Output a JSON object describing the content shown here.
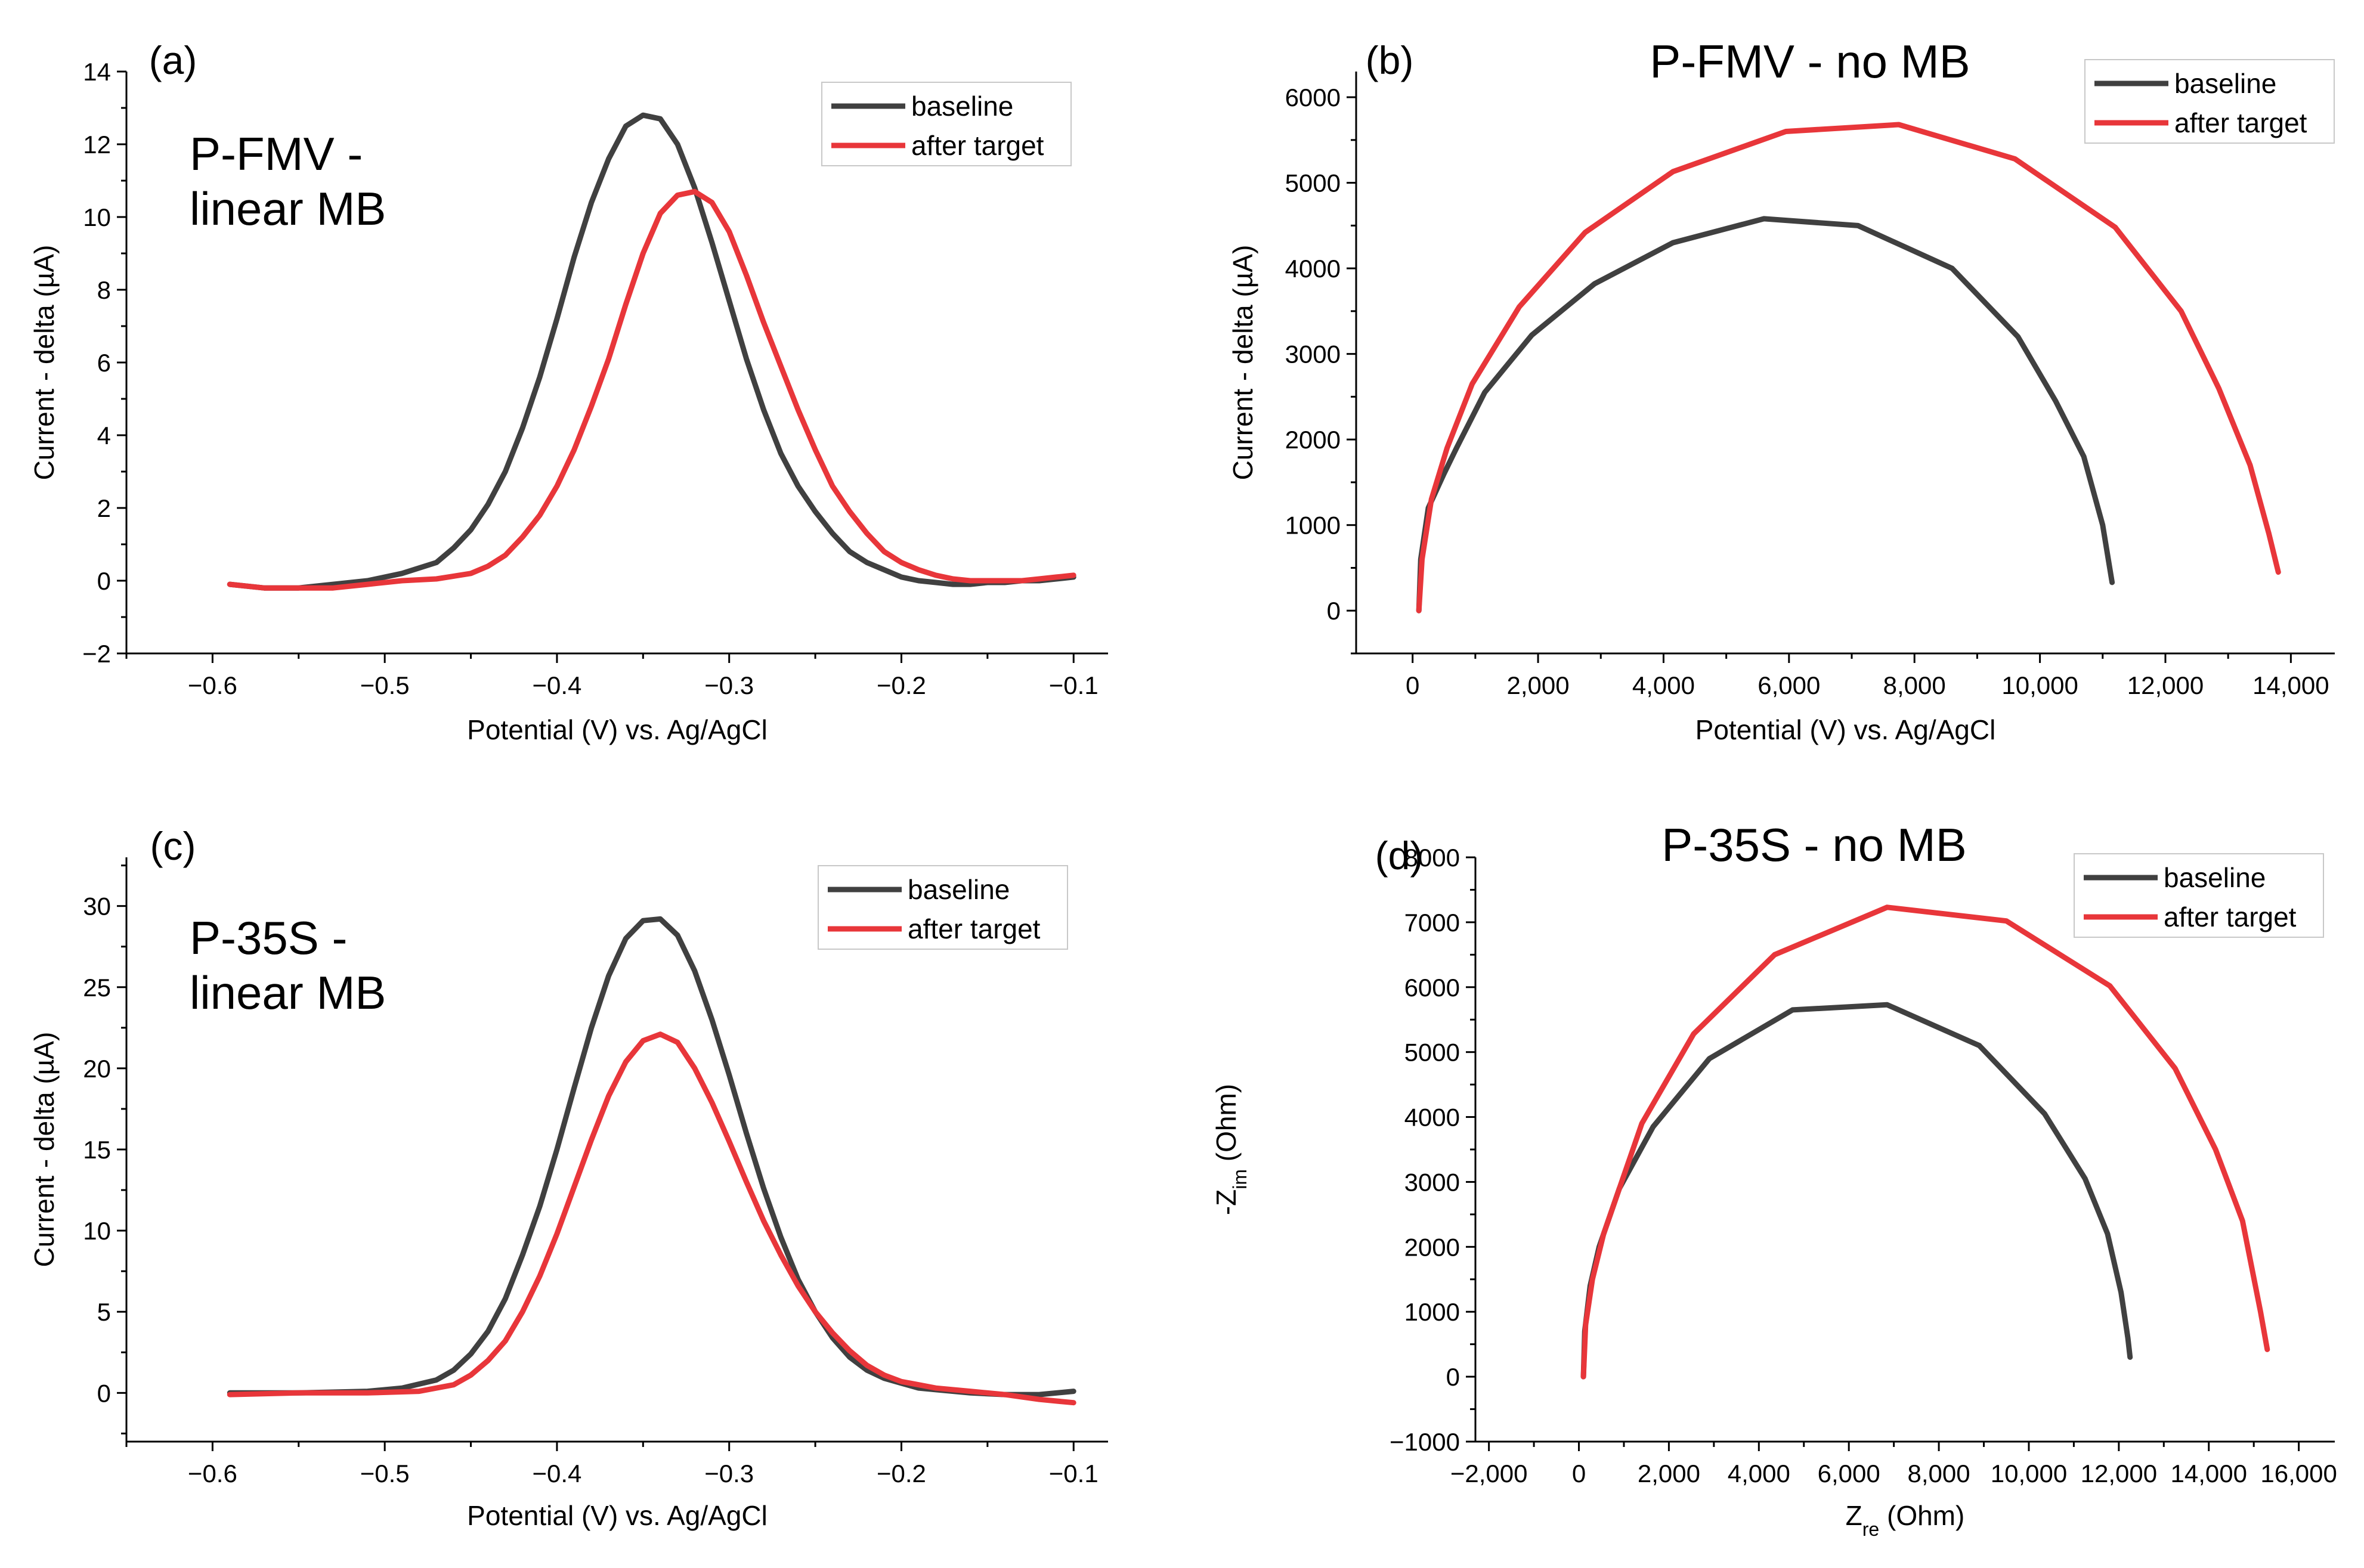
{
  "colors": {
    "baseline": "#404040",
    "after_target": "#e8363a"
  },
  "chart_data": [
    {
      "type": "line",
      "panel_label": "(a)",
      "title": "",
      "annotation_lines": [
        "P-FMV -",
        "linear MB"
      ],
      "xlabel": "Potential (V) vs. Ag/AgCl",
      "ylabel": "Current - delta (µA)",
      "xlim": [
        -0.65,
        -0.08
      ],
      "ylim": [
        -2,
        14
      ],
      "xticks": [
        -0.6,
        -0.5,
        -0.4,
        -0.3,
        -0.2,
        -0.1
      ],
      "xtick_labels": [
        "−0.6",
        "−0.5",
        "−0.4",
        "−0.3",
        "−0.2",
        "−0.1"
      ],
      "yticks": [
        -2,
        0,
        2,
        4,
        6,
        8,
        10,
        12,
        14
      ],
      "ytick_labels": [
        "−2",
        "0",
        "2",
        "4",
        "6",
        "8",
        "10",
        "12",
        "14"
      ],
      "legend_labels": [
        "baseline",
        "after target"
      ],
      "series": [
        {
          "name": "baseline",
          "x": [
            -0.59,
            -0.57,
            -0.55,
            -0.53,
            -0.51,
            -0.49,
            -0.47,
            -0.46,
            -0.45,
            -0.44,
            -0.43,
            -0.42,
            -0.41,
            -0.4,
            -0.39,
            -0.38,
            -0.37,
            -0.36,
            -0.35,
            -0.34,
            -0.33,
            -0.32,
            -0.31,
            -0.3,
            -0.29,
            -0.28,
            -0.27,
            -0.26,
            -0.25,
            -0.24,
            -0.23,
            -0.22,
            -0.21,
            -0.2,
            -0.19,
            -0.18,
            -0.17,
            -0.16,
            -0.15,
            -0.14,
            -0.13,
            -0.12,
            -0.11,
            -0.1
          ],
          "y": [
            -0.1,
            -0.2,
            -0.2,
            -0.1,
            0.0,
            0.2,
            0.5,
            0.9,
            1.4,
            2.1,
            3.0,
            4.2,
            5.6,
            7.2,
            8.9,
            10.4,
            11.6,
            12.5,
            12.8,
            12.7,
            12.0,
            10.8,
            9.3,
            7.7,
            6.1,
            4.7,
            3.5,
            2.6,
            1.9,
            1.3,
            0.8,
            0.5,
            0.3,
            0.1,
            0.0,
            -0.05,
            -0.1,
            -0.1,
            -0.05,
            -0.05,
            0.0,
            0.0,
            0.05,
            0.1
          ]
        },
        {
          "name": "after target",
          "x": [
            -0.59,
            -0.57,
            -0.55,
            -0.53,
            -0.51,
            -0.49,
            -0.47,
            -0.45,
            -0.44,
            -0.43,
            -0.42,
            -0.41,
            -0.4,
            -0.39,
            -0.38,
            -0.37,
            -0.36,
            -0.35,
            -0.34,
            -0.33,
            -0.32,
            -0.31,
            -0.3,
            -0.29,
            -0.28,
            -0.27,
            -0.26,
            -0.25,
            -0.24,
            -0.23,
            -0.22,
            -0.21,
            -0.2,
            -0.19,
            -0.18,
            -0.17,
            -0.16,
            -0.15,
            -0.14,
            -0.13,
            -0.12,
            -0.11,
            -0.1
          ],
          "y": [
            -0.1,
            -0.2,
            -0.2,
            -0.2,
            -0.1,
            0.0,
            0.05,
            0.2,
            0.4,
            0.7,
            1.2,
            1.8,
            2.6,
            3.6,
            4.8,
            6.1,
            7.6,
            9.0,
            10.1,
            10.6,
            10.7,
            10.4,
            9.6,
            8.4,
            7.1,
            5.9,
            4.7,
            3.6,
            2.6,
            1.9,
            1.3,
            0.8,
            0.5,
            0.3,
            0.15,
            0.05,
            0.0,
            0.0,
            0.0,
            0.0,
            0.05,
            0.1,
            0.15
          ]
        }
      ]
    },
    {
      "type": "line",
      "panel_label": "(b)",
      "title": "P-FMV - no MB",
      "annotation_lines": [],
      "xlabel": "Potential (V) vs. Ag/AgCl",
      "ylabel": "Current - delta (µA)",
      "xlim": [
        -900,
        14700
      ],
      "ylim": [
        -500,
        6300
      ],
      "xticks": [
        0,
        2000,
        4000,
        6000,
        8000,
        10000,
        12000,
        14000
      ],
      "xtick_labels": [
        "0",
        "2,000",
        "4,000",
        "6,000",
        "8,000",
        "10,000",
        "12,000",
        "14,000"
      ],
      "yticks": [
        0,
        1000,
        2000,
        3000,
        4000,
        5000,
        6000
      ],
      "ytick_labels": [
        "0",
        "1000",
        "2000",
        "3000",
        "4000",
        "5000",
        "6000"
      ],
      "legend_labels": [
        "baseline",
        "after target"
      ],
      "series": [
        {
          "name": "baseline",
          "x": [
            100,
            130,
            250,
            500,
            700,
            1150,
            1900,
            2900,
            4150,
            5600,
            7100,
            8600,
            9650,
            10250,
            10700,
            11000,
            11150
          ],
          "y": [
            0,
            600,
            1200,
            1600,
            1900,
            2550,
            3220,
            3820,
            4300,
            4580,
            4500,
            4000,
            3200,
            2450,
            1800,
            1000,
            330
          ]
        },
        {
          "name": "after target",
          "x": [
            100,
            150,
            300,
            550,
            950,
            1700,
            2750,
            4150,
            5950,
            7750,
            9600,
            11200,
            12250,
            12850,
            13350,
            13650,
            13800
          ],
          "y": [
            0,
            600,
            1300,
            1900,
            2650,
            3550,
            4420,
            5130,
            5600,
            5680,
            5280,
            4480,
            3500,
            2600,
            1700,
            900,
            450
          ]
        }
      ]
    },
    {
      "type": "line",
      "panel_label": "(c)",
      "title": "",
      "annotation_lines": [
        "P-35S -",
        "linear MB"
      ],
      "xlabel": "Potential (V) vs. Ag/AgCl",
      "ylabel": "Current - delta (µA)",
      "xlim": [
        -0.65,
        -0.08
      ],
      "ylim": [
        -3,
        33
      ],
      "xticks": [
        -0.6,
        -0.5,
        -0.4,
        -0.3,
        -0.2,
        -0.1
      ],
      "xtick_labels": [
        "−0.6",
        "−0.5",
        "−0.4",
        "−0.3",
        "−0.2",
        "−0.1"
      ],
      "yticks": [
        0,
        5,
        10,
        15,
        20,
        25,
        30
      ],
      "ytick_labels": [
        "0",
        "5",
        "10",
        "15",
        "20",
        "25",
        "30"
      ],
      "legend_labels": [
        "baseline",
        "after target"
      ],
      "series": [
        {
          "name": "baseline",
          "x": [
            -0.59,
            -0.55,
            -0.51,
            -0.49,
            -0.47,
            -0.46,
            -0.45,
            -0.44,
            -0.43,
            -0.42,
            -0.41,
            -0.4,
            -0.39,
            -0.38,
            -0.37,
            -0.36,
            -0.35,
            -0.34,
            -0.33,
            -0.32,
            -0.31,
            -0.3,
            -0.29,
            -0.28,
            -0.27,
            -0.26,
            -0.25,
            -0.24,
            -0.23,
            -0.22,
            -0.21,
            -0.2,
            -0.19,
            -0.18,
            -0.16,
            -0.14,
            -0.12,
            -0.1
          ],
          "y": [
            0.0,
            0.0,
            0.1,
            0.3,
            0.8,
            1.4,
            2.4,
            3.8,
            5.8,
            8.5,
            11.5,
            15.0,
            18.8,
            22.5,
            25.7,
            28.0,
            29.1,
            29.2,
            28.2,
            26.0,
            23.0,
            19.6,
            16.0,
            12.6,
            9.6,
            7.0,
            5.0,
            3.4,
            2.2,
            1.4,
            0.9,
            0.6,
            0.3,
            0.2,
            0.0,
            -0.1,
            -0.1,
            0.1
          ]
        },
        {
          "name": "after target",
          "x": [
            -0.59,
            -0.55,
            -0.51,
            -0.48,
            -0.46,
            -0.45,
            -0.44,
            -0.43,
            -0.42,
            -0.41,
            -0.4,
            -0.39,
            -0.38,
            -0.37,
            -0.36,
            -0.35,
            -0.34,
            -0.33,
            -0.32,
            -0.31,
            -0.3,
            -0.29,
            -0.28,
            -0.27,
            -0.26,
            -0.25,
            -0.24,
            -0.23,
            -0.22,
            -0.21,
            -0.2,
            -0.19,
            -0.18,
            -0.16,
            -0.14,
            -0.12,
            -0.1
          ],
          "y": [
            -0.1,
            0.0,
            0.0,
            0.1,
            0.5,
            1.1,
            2.0,
            3.2,
            5.0,
            7.2,
            9.8,
            12.7,
            15.6,
            18.3,
            20.4,
            21.7,
            22.1,
            21.6,
            20.0,
            17.9,
            15.5,
            13.0,
            10.6,
            8.5,
            6.6,
            5.0,
            3.7,
            2.6,
            1.7,
            1.1,
            0.7,
            0.5,
            0.3,
            0.1,
            -0.1,
            -0.4,
            -0.6
          ]
        }
      ]
    },
    {
      "type": "line",
      "panel_label": "(d)",
      "title": "P-35S - no MB",
      "annotation_lines": [],
      "xlabel": "Z",
      "xlabel_sub": "re",
      "xlabel_suffix": " (Ohm)",
      "ylabel": "-Z",
      "ylabel_sub": "im",
      "ylabel_suffix": "  (Ohm)",
      "xlim": [
        -2300,
        16800
      ],
      "ylim": [
        -1000,
        8000
      ],
      "xticks": [
        -2000,
        0,
        2000,
        4000,
        6000,
        8000,
        10000,
        12000,
        14000,
        16000
      ],
      "xtick_labels": [
        "−2,000",
        "0",
        "2,000",
        "4,000",
        "6,000",
        "8,000",
        "10,000",
        "12,000",
        "14,000",
        "16,000"
      ],
      "yticks": [
        -1000,
        0,
        1000,
        2000,
        3000,
        4000,
        5000,
        6000,
        7000,
        8000
      ],
      "ytick_labels": [
        "−1000",
        "0",
        "1000",
        "2000",
        "3000",
        "4000",
        "5000",
        "6000",
        "7000",
        "8000"
      ],
      "legend_labels": [
        "baseline",
        "after target"
      ],
      "series": [
        {
          "name": "baseline",
          "x": [
            100,
            130,
            250,
            450,
            900,
            1650,
            2900,
            4750,
            6850,
            8900,
            10350,
            11250,
            11750,
            12050,
            12200,
            12250
          ],
          "y": [
            0,
            700,
            1400,
            2000,
            2900,
            3850,
            4900,
            5650,
            5730,
            5100,
            4050,
            3050,
            2200,
            1300,
            600,
            300
          ]
        },
        {
          "name": "after target",
          "x": [
            100,
            150,
            300,
            550,
            950,
            1400,
            2550,
            4350,
            6850,
            9500,
            11800,
            13250,
            14150,
            14750,
            15150,
            15300
          ],
          "y": [
            0,
            800,
            1500,
            2200,
            3000,
            3900,
            5280,
            6500,
            7230,
            7020,
            6020,
            4750,
            3500,
            2400,
            1000,
            420
          ]
        }
      ]
    }
  ]
}
